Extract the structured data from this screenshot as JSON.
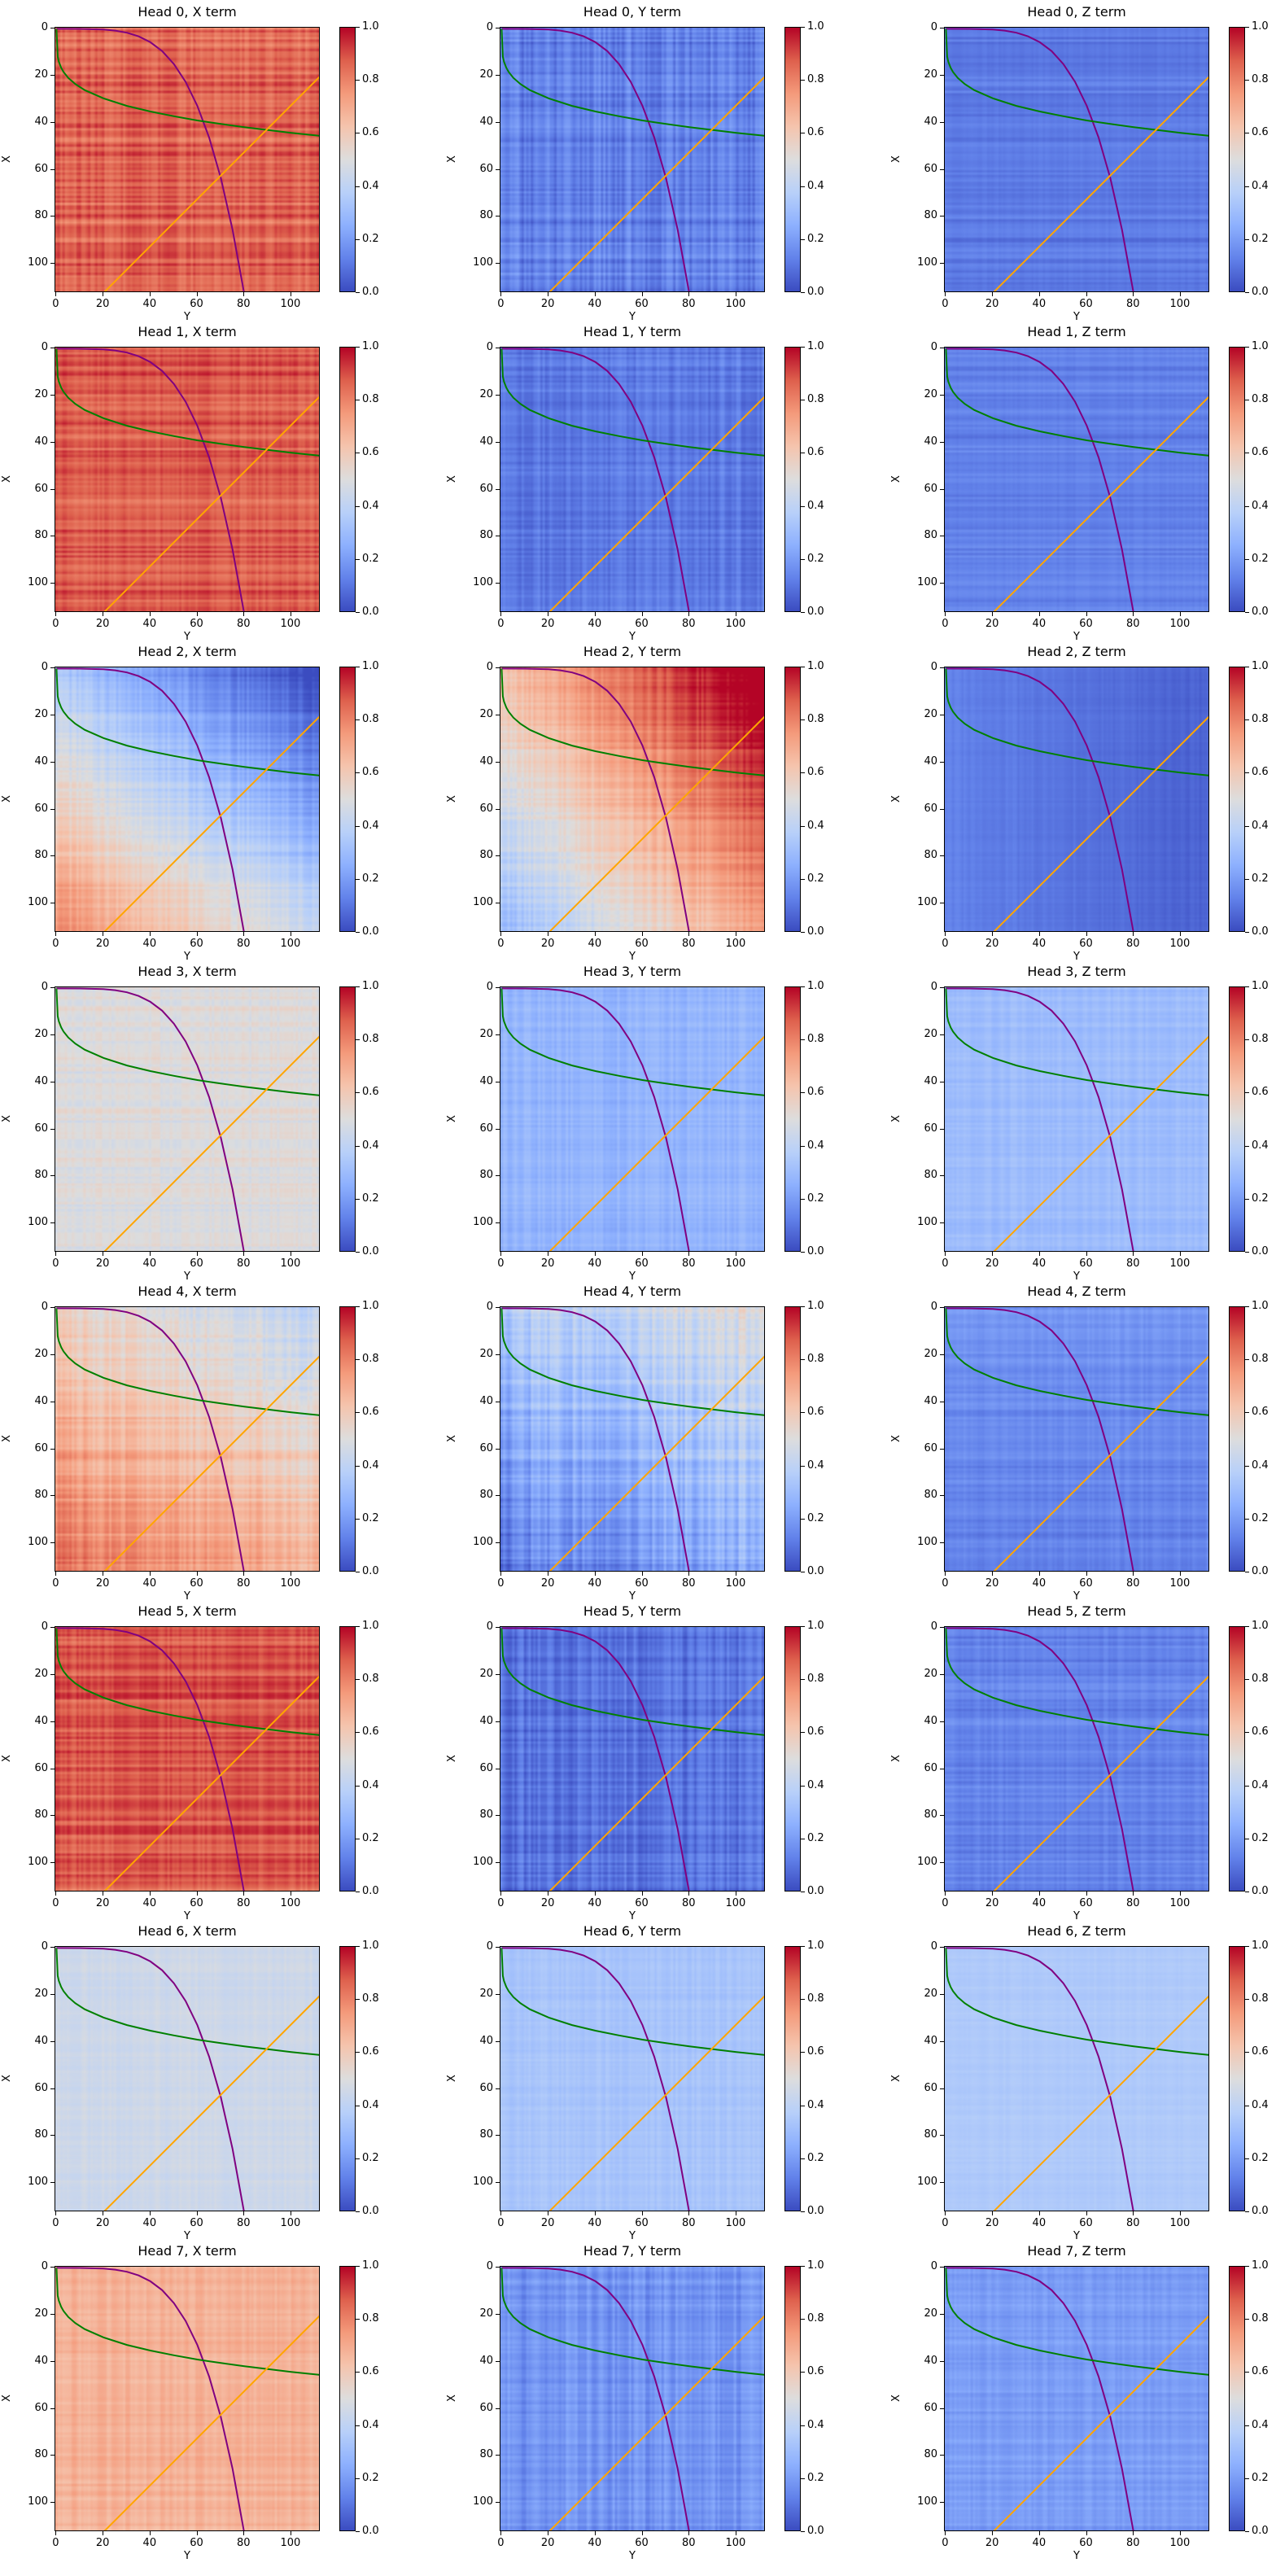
{
  "chart_data": {
    "type": "heatmap",
    "layout": "8 rows x 3 columns grid",
    "colormap": "coolwarm",
    "clim": [
      0.0,
      1.0
    ],
    "colorbar_ticks": [
      "0.0",
      "0.2",
      "0.4",
      "0.6",
      "0.8",
      "1.0"
    ],
    "xlabel": "Y",
    "ylabel": "X",
    "xlim": [
      -0.5,
      112.5
    ],
    "ylim": [
      112.5,
      -0.5
    ],
    "xticks": [
      0,
      20,
      40,
      60,
      80,
      100
    ],
    "yticks": [
      0,
      20,
      40,
      60,
      80,
      100
    ],
    "grid": false,
    "overlay_lines": [
      {
        "color": "#800080",
        "points": [
          [
            0,
            0
          ],
          [
            10,
            0.01
          ],
          [
            20,
            0.29
          ],
          [
            25,
            0.76
          ],
          [
            30,
            1.66
          ],
          [
            35,
            3.2
          ],
          [
            40,
            5.7
          ],
          [
            45,
            9.5
          ],
          [
            50,
            15.0
          ],
          [
            55,
            22.6
          ],
          [
            60,
            32.8
          ],
          [
            65,
            46.3
          ],
          [
            70,
            63.6
          ],
          [
            75,
            85.6
          ],
          [
            80,
            113
          ]
        ]
      },
      {
        "color": "#008000",
        "points": [
          [
            0,
            0
          ],
          [
            0.5,
            11.8
          ],
          [
            1,
            14
          ],
          [
            2,
            16.6
          ],
          [
            3,
            18.4
          ],
          [
            5,
            20.9
          ],
          [
            8,
            23.5
          ],
          [
            12,
            26.1
          ],
          [
            20,
            29.6
          ],
          [
            30,
            32.8
          ],
          [
            40,
            35.2
          ],
          [
            50,
            37.2
          ],
          [
            60,
            39.0
          ],
          [
            70,
            40.5
          ],
          [
            80,
            41.9
          ],
          [
            90,
            43.1
          ],
          [
            100,
            44.3
          ],
          [
            112.5,
            45.6
          ]
        ]
      },
      {
        "color": "#FFA500",
        "points": [
          [
            20,
            112.5
          ],
          [
            112.5,
            20
          ]
        ]
      }
    ],
    "panels": [
      {
        "title": "Head 0, X term",
        "mean": 0.86,
        "grad_y": 0.0,
        "grad_x": 0.02,
        "row_var": 0.09,
        "col_var": 0.04
      },
      {
        "title": "Head 0, Y term",
        "mean": 0.13,
        "grad_y": 0.0,
        "grad_x": 0.0,
        "row_var": 0.06,
        "col_var": 0.06
      },
      {
        "title": "Head 0, Z term",
        "mean": 0.11,
        "grad_y": 0.0,
        "grad_x": 0.0,
        "row_var": 0.05,
        "col_var": 0.01
      },
      {
        "title": "Head 1, X term",
        "mean": 0.88,
        "grad_y": 0.0,
        "grad_x": 0.0,
        "row_var": 0.08,
        "col_var": 0.03
      },
      {
        "title": "Head 1, Y term",
        "mean": 0.11,
        "grad_y": 0.0,
        "grad_x": 0.0,
        "row_var": 0.05,
        "col_var": 0.04
      },
      {
        "title": "Head 1, Z term",
        "mean": 0.13,
        "grad_y": 0.0,
        "grad_x": 0.0,
        "row_var": 0.05,
        "col_var": 0.01
      },
      {
        "title": "Head 2, X term",
        "mean": 0.38,
        "grad_y": -0.35,
        "grad_x": 0.45,
        "row_var": 0.05,
        "col_var": 0.04
      },
      {
        "title": "Head 2, Y term",
        "mean": 0.68,
        "grad_y": 0.45,
        "grad_x": -0.35,
        "row_var": 0.05,
        "col_var": 0.04
      },
      {
        "title": "Head 2, Z term",
        "mean": 0.09,
        "grad_y": -0.08,
        "grad_x": 0.0,
        "row_var": 0.01,
        "col_var": 0.015
      },
      {
        "title": "Head 3, X term",
        "mean": 0.5,
        "grad_y": 0.0,
        "grad_x": 0.0,
        "row_var": 0.05,
        "col_var": 0.03
      },
      {
        "title": "Head 3, Y term",
        "mean": 0.27,
        "grad_y": 0.0,
        "grad_x": 0.0,
        "row_var": 0.03,
        "col_var": 0.03
      },
      {
        "title": "Head 3, Z term",
        "mean": 0.3,
        "grad_y": 0.0,
        "grad_x": 0.0,
        "row_var": 0.03,
        "col_var": 0.02
      },
      {
        "title": "Head 4, X term",
        "mean": 0.62,
        "grad_y": -0.15,
        "grad_x": 0.3,
        "row_var": 0.07,
        "col_var": 0.05
      },
      {
        "title": "Head 4, Y term",
        "mean": 0.3,
        "grad_y": 0.15,
        "grad_x": -0.25,
        "row_var": 0.06,
        "col_var": 0.07
      },
      {
        "title": "Head 4, Z term",
        "mean": 0.15,
        "grad_y": 0.0,
        "grad_x": -0.05,
        "row_var": 0.04,
        "col_var": 0.02
      },
      {
        "title": "Head 5, X term",
        "mean": 0.88,
        "grad_y": 0.0,
        "grad_x": 0.0,
        "row_var": 0.08,
        "col_var": 0.03
      },
      {
        "title": "Head 5, Y term",
        "mean": 0.09,
        "grad_y": 0.0,
        "grad_x": 0.0,
        "row_var": 0.05,
        "col_var": 0.05
      },
      {
        "title": "Head 5, Z term",
        "mean": 0.13,
        "grad_y": 0.0,
        "grad_x": 0.0,
        "row_var": 0.05,
        "col_var": 0.02
      },
      {
        "title": "Head 6, X term",
        "mean": 0.45,
        "grad_y": 0.0,
        "grad_x": 0.0,
        "row_var": 0.02,
        "col_var": 0.02
      },
      {
        "title": "Head 6, Y term",
        "mean": 0.33,
        "grad_y": 0.0,
        "grad_x": 0.0,
        "row_var": 0.02,
        "col_var": 0.02
      },
      {
        "title": "Head 6, Z term",
        "mean": 0.35,
        "grad_y": 0.0,
        "grad_x": 0.0,
        "row_var": 0.015,
        "col_var": 0.01
      },
      {
        "title": "Head 7, X term",
        "mean": 0.68,
        "grad_y": 0.0,
        "grad_x": 0.0,
        "row_var": 0.04,
        "col_var": 0.03
      },
      {
        "title": "Head 7, Y term",
        "mean": 0.18,
        "grad_y": 0.0,
        "grad_x": 0.0,
        "row_var": 0.04,
        "col_var": 0.05
      },
      {
        "title": "Head 7, Z term",
        "mean": 0.2,
        "grad_y": 0.0,
        "grad_x": 0.0,
        "row_var": 0.04,
        "col_var": 0.02
      }
    ]
  }
}
